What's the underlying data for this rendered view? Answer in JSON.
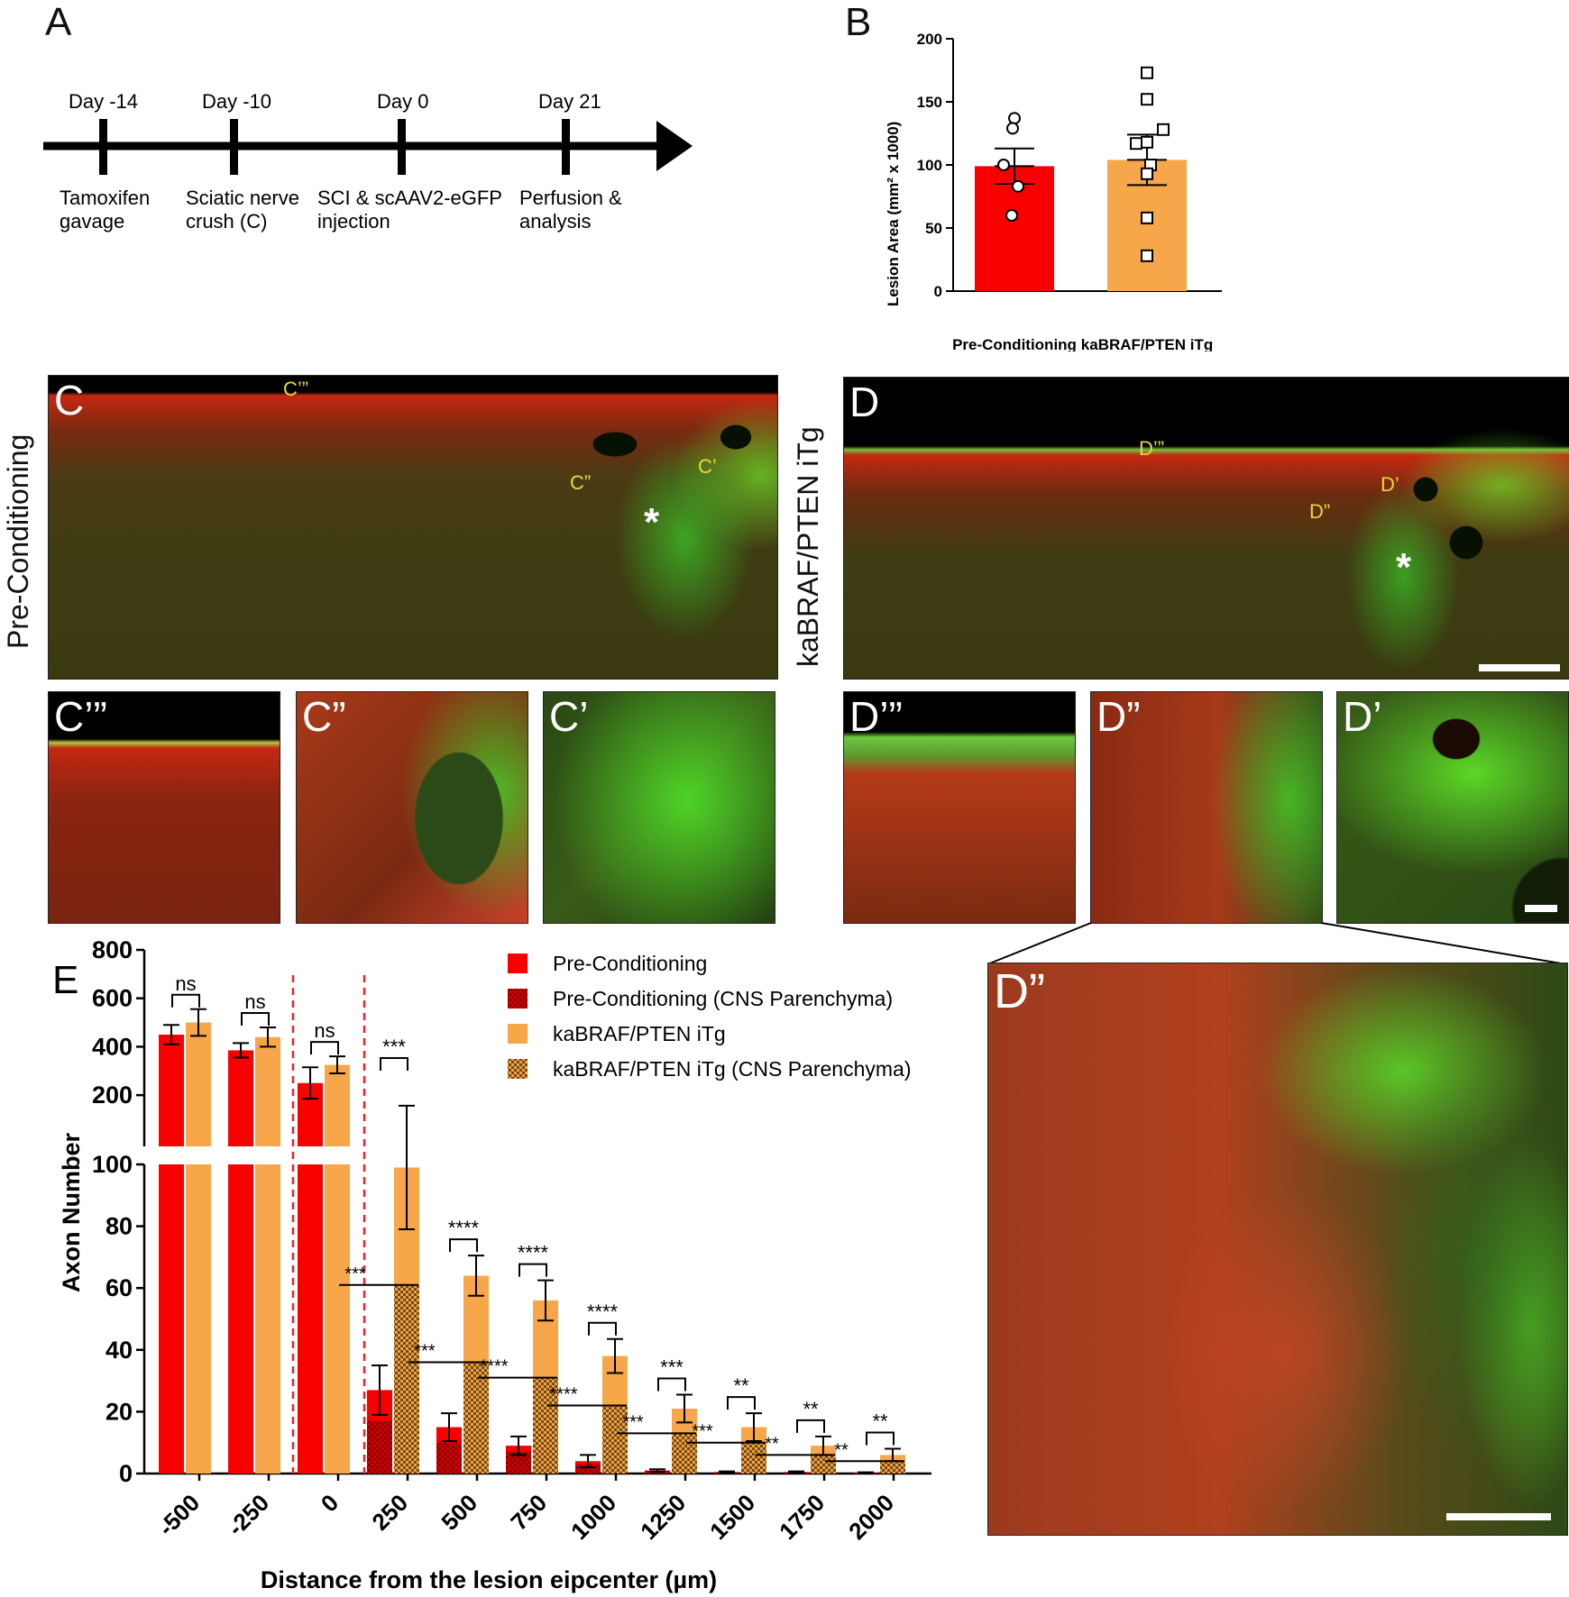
{
  "panels": {
    "A": "A",
    "B": "B",
    "C": "C",
    "D": "D",
    "E": "E"
  },
  "timeline": {
    "events": [
      {
        "day": "Day -14",
        "label": [
          "Tamoxifen",
          "gavage"
        ]
      },
      {
        "day": "Day -10",
        "label": [
          "Sciatic nerve",
          "crush (C)"
        ]
      },
      {
        "day": "Day 0",
        "label": [
          "SCI & scAAV2-eGFP",
          "injection"
        ]
      },
      {
        "day": "Day 21",
        "label": [
          "Perfusion &",
          "analysis"
        ]
      }
    ]
  },
  "micrographs": {
    "row_label_c": "Pre-Conditioning",
    "row_label_d": "kaBRAF/PTEN iTg",
    "c_main_labels": [
      "C’”",
      "C”",
      "C’"
    ],
    "d_main_labels": [
      "D’”",
      "D”",
      "D’"
    ],
    "lesion_marker": "*",
    "c_insets": [
      "C’”",
      "C”",
      "C’"
    ],
    "d_insets": [
      "D’”",
      "D”",
      "D’"
    ],
    "d_zoom": "D”"
  },
  "chart_data": [
    {
      "panel": "B",
      "type": "bar",
      "categories": [
        "Pre-Conditioning",
        "kaBRAF/PTEN iTg"
      ],
      "values": [
        99,
        104
      ],
      "errors": [
        14,
        20
      ],
      "points": [
        [
          137,
          129,
          100,
          83,
          60
        ],
        [
          173,
          152,
          128,
          118,
          117,
          100,
          93,
          58,
          28
        ]
      ],
      "ylabel": "Lesion Area (mm² x 1000)",
      "yticks": [
        0,
        50,
        100,
        150,
        200
      ],
      "ylim": [
        0,
        200
      ],
      "colors": [
        "#f90000",
        "#f7a64a"
      ]
    },
    {
      "panel": "E",
      "type": "bar",
      "xlabel": "Distance from the lesion eipcenter (µm)",
      "ylabel": "Axon Number",
      "categories": [
        "-500",
        "-250",
        "0",
        "250",
        "500",
        "750",
        "1000",
        "1250",
        "1500",
        "1750",
        "2000"
      ],
      "y_break": {
        "lower": [
          0,
          100
        ],
        "upper": [
          100,
          800
        ]
      },
      "yticks_lower": [
        0,
        20,
        40,
        60,
        80,
        100
      ],
      "yticks_upper": [
        200,
        400,
        600,
        800
      ],
      "series": [
        {
          "name": "Pre-Conditioning",
          "color": "#f90000",
          "values": [
            450,
            385,
            250,
            27,
            15,
            9,
            4,
            1,
            0.5,
            0.5,
            0.3
          ],
          "errors": [
            40,
            30,
            65,
            8,
            4.5,
            3,
            2,
            0.4,
            0.2,
            0.2,
            0.1
          ]
        },
        {
          "name": "Pre-Conditioning (CNS Parenchyma)",
          "color": "#c80000",
          "values": [
            null,
            null,
            null,
            17,
            10,
            7,
            3,
            0.8,
            0.4,
            0.4,
            0.2
          ]
        },
        {
          "name": "kaBRAF/PTEN iTg",
          "color": "#f7a64a",
          "values": [
            500,
            440,
            325,
            99,
            64,
            56,
            38,
            21,
            15,
            9,
            6
          ],
          "errors": [
            55,
            40,
            35,
            20,
            6.5,
            6.5,
            5.5,
            4.5,
            4.5,
            3,
            2
          ]
        },
        {
          "name": "kaBRAF/PTEN iTg (CNS Parenchyma)",
          "color": "#e39a3d",
          "values": [
            null,
            null,
            null,
            61,
            36,
            31,
            22,
            13,
            10,
            6,
            4
          ]
        }
      ],
      "sig_total": [
        "ns",
        "ns",
        "ns",
        "***",
        "****",
        "****",
        "****",
        "***",
        "**",
        "**",
        "**"
      ],
      "sig_parenchyma": [
        "",
        "",
        "",
        "***",
        "***",
        "****",
        "****",
        "***",
        "***",
        "**",
        "**"
      ]
    }
  ]
}
